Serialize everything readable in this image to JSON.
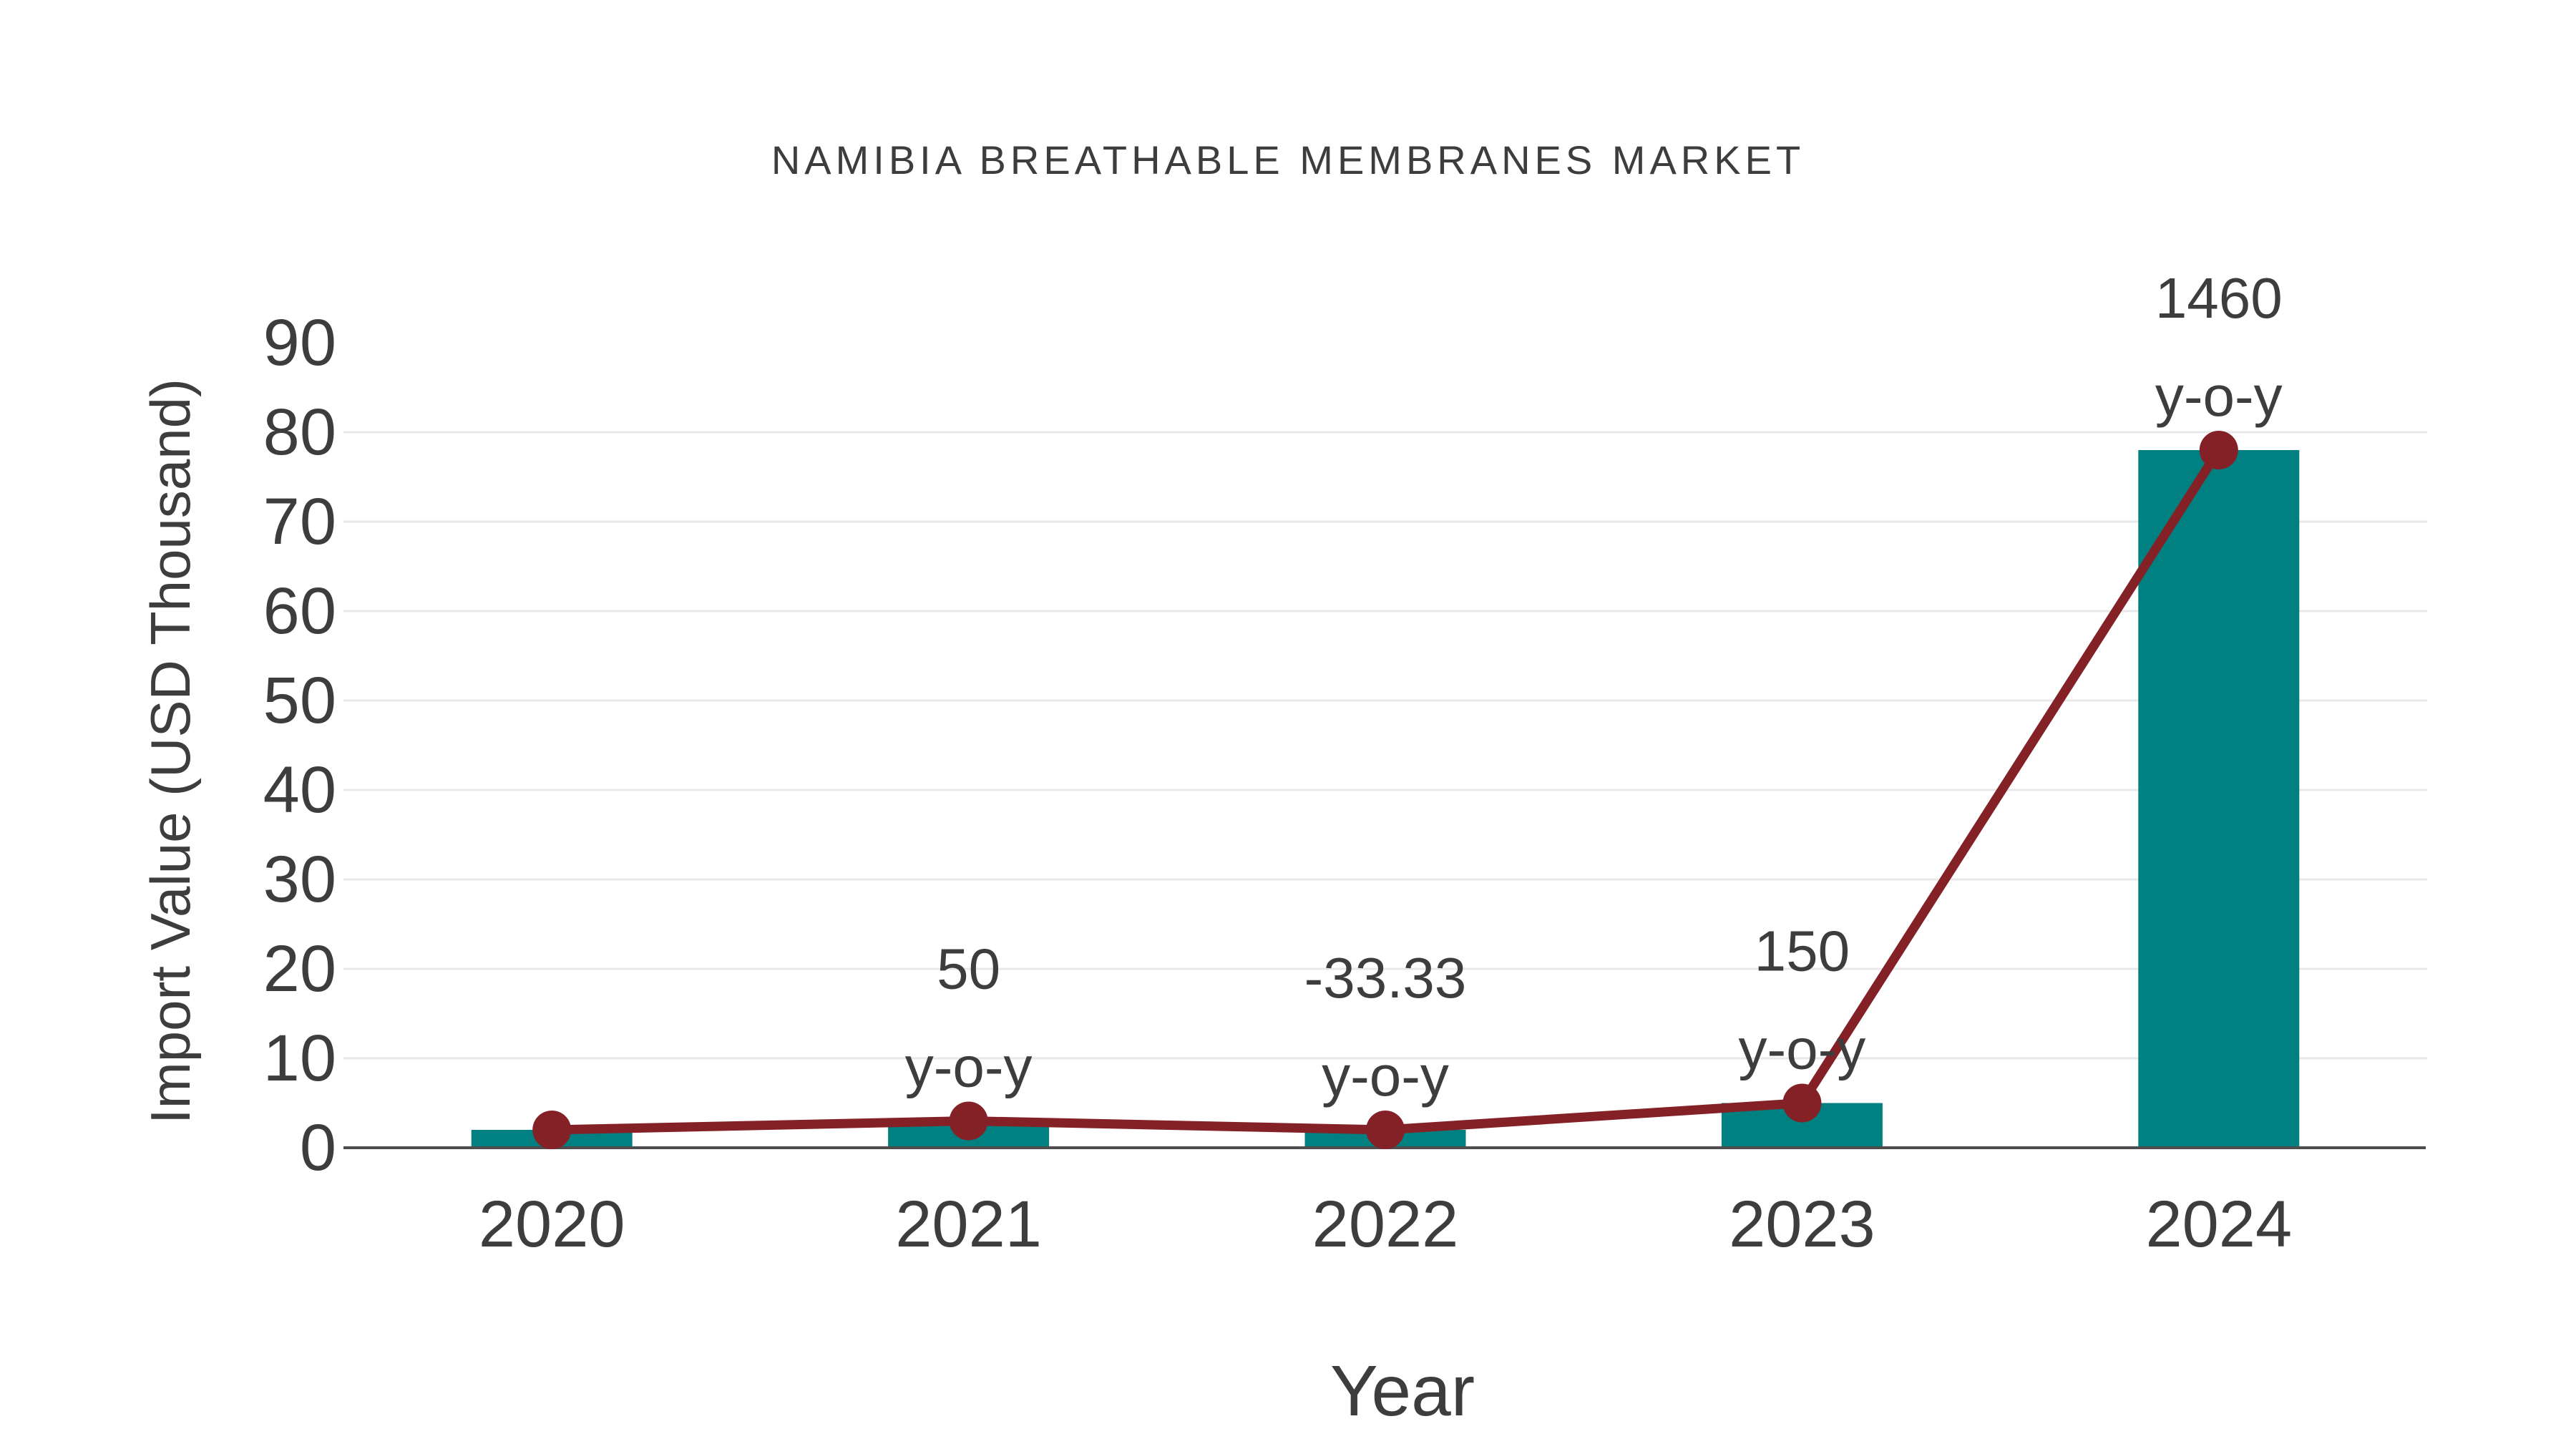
{
  "chart_data": {
    "type": "bar",
    "title": "NAMIBIA BREATHABLE MEMBRANES MARKET",
    "xlabel": "Year",
    "ylabel": "Import Value (USD Thousand)",
    "categories": [
      "2020",
      "2021",
      "2022",
      "2023",
      "2024"
    ],
    "series": [
      {
        "name": "import-value-bars",
        "type": "bar",
        "values": [
          2,
          3,
          2,
          5,
          78
        ]
      },
      {
        "name": "import-value-trend",
        "type": "line",
        "values": [
          2,
          3,
          2,
          5,
          78
        ]
      }
    ],
    "ylim": [
      0,
      90
    ],
    "ytick_step": 10,
    "yticks": [
      0,
      10,
      20,
      30,
      40,
      50,
      60,
      70,
      80,
      90
    ],
    "grid": "horizontal",
    "legend": "none",
    "annotations": [
      {
        "category": "2021",
        "lines": [
          "50",
          "y-o-y"
        ]
      },
      {
        "category": "2022",
        "lines": [
          "-33.33",
          "y-o-y"
        ]
      },
      {
        "category": "2023",
        "lines": [
          "150",
          "y-o-y"
        ]
      },
      {
        "category": "2024",
        "lines": [
          "1460",
          "y-o-y"
        ]
      }
    ],
    "colors": {
      "bar": "#008080",
      "line": "#842126",
      "text": "#3d3d3d",
      "grid": "#e8e8e8",
      "axis": "#4d4d4d",
      "background": "#ffffff"
    }
  }
}
